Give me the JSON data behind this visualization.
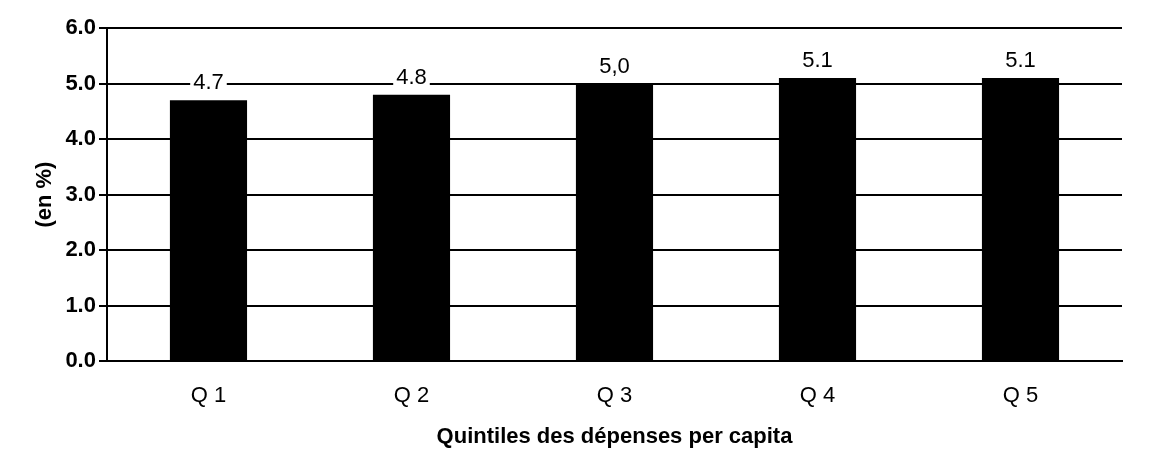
{
  "chart_data": {
    "type": "bar",
    "xlabel": "Quintiles des dépenses per capita",
    "ylabel": "(en %)",
    "categories": [
      "Q 1",
      "Q 2",
      "Q 3",
      "Q 4",
      "Q 5"
    ],
    "values": [
      4.7,
      4.8,
      5.0,
      5.1,
      5.1
    ],
    "color": "#000000",
    "value_labels": [
      "4.7",
      "4.8",
      "5,0",
      "5.1",
      "5.1"
    ],
    "ylim": [
      0,
      6
    ],
    "yticks": [
      {
        "value": 0,
        "label": "0.0"
      },
      {
        "value": 1,
        "label": "1.0"
      },
      {
        "value": 2,
        "label": "2.0"
      },
      {
        "value": 3,
        "label": "3.0"
      },
      {
        "value": 4,
        "label": "4.0"
      },
      {
        "value": 5,
        "label": "5.0"
      },
      {
        "value": 6,
        "label": "6.0"
      }
    ],
    "grid": "y"
  }
}
